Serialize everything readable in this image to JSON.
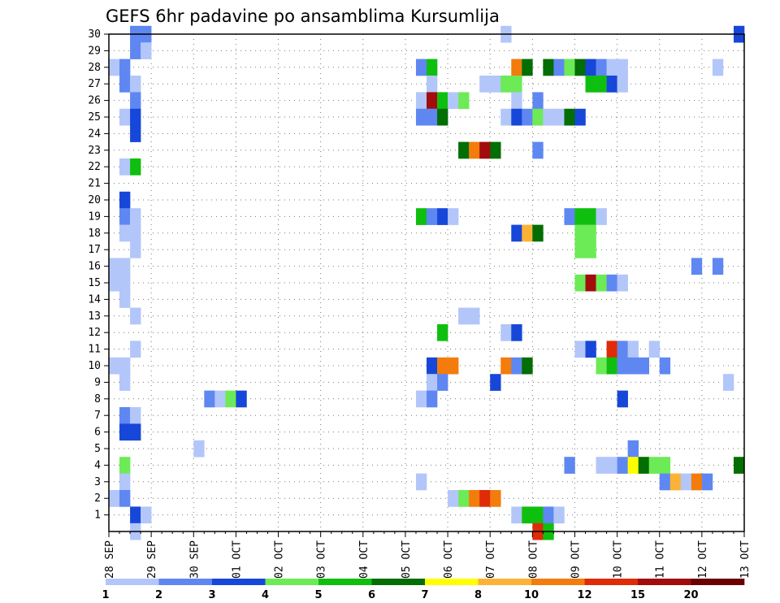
{
  "chart_data": {
    "type": "heatmap",
    "title": "GEFS 6hr padavine po ansamblima Kursumlija",
    "xlabel": "",
    "ylabel": "",
    "x_start": "28 SEP",
    "x_ticks": [
      "28 SEP",
      "29 SEP",
      "30 SEP",
      "01 OCT",
      "02 OCT",
      "03 OCT",
      "04 OCT",
      "05 OCT",
      "06 OCT",
      "07 OCT",
      "08 OCT",
      "09 OCT",
      "10 OCT",
      "11 OCT",
      "12 OCT",
      "13 OCT"
    ],
    "y_ticks": [
      "1",
      "2",
      "3",
      "4",
      "5",
      "6",
      "7",
      "8",
      "9",
      "10",
      "11",
      "12",
      "13",
      "14",
      "15",
      "16",
      "17",
      "18",
      "19",
      "20",
      "21",
      "22",
      "23",
      "24",
      "25",
      "26",
      "27",
      "28",
      "29",
      "30"
    ],
    "ylim": [
      0,
      30
    ],
    "grid": true,
    "colorbar": {
      "labels": [
        "1",
        "2",
        "3",
        "4",
        "5",
        "6",
        "7",
        "8",
        "10",
        "12",
        "15",
        "20"
      ],
      "colors": [
        "#b3c6fa",
        "#5f87f2",
        "#1747d9",
        "#6ceb56",
        "#0fbf0f",
        "#036e03",
        "#ffff00",
        "#fcb237",
        "#f37c0c",
        "#df2b08",
        "#a30c0c",
        "#6b0000"
      ]
    },
    "cells": [
      {
        "day": 0.5,
        "member": 30,
        "value": 2
      },
      {
        "day": 0.75,
        "member": 30,
        "value": 2
      },
      {
        "day": 9.25,
        "member": 30,
        "value": 1
      },
      {
        "day": 14.75,
        "member": 30,
        "value": 3
      },
      {
        "day": 0.5,
        "member": 29,
        "value": 2
      },
      {
        "day": 0.75,
        "member": 29,
        "value": 1
      },
      {
        "day": 0.0,
        "member": 28,
        "value": 1
      },
      {
        "day": 0.25,
        "member": 28,
        "value": 2
      },
      {
        "day": 7.25,
        "member": 28,
        "value": 2
      },
      {
        "day": 7.5,
        "member": 28,
        "value": 5
      },
      {
        "day": 9.5,
        "member": 28,
        "value": 10
      },
      {
        "day": 9.75,
        "member": 28,
        "value": 6
      },
      {
        "day": 10.25,
        "member": 28,
        "value": 6
      },
      {
        "day": 10.5,
        "member": 28,
        "value": 2
      },
      {
        "day": 10.75,
        "member": 28,
        "value": 4
      },
      {
        "day": 11.0,
        "member": 28,
        "value": 6
      },
      {
        "day": 11.25,
        "member": 28,
        "value": 3
      },
      {
        "day": 11.5,
        "member": 28,
        "value": 2
      },
      {
        "day": 11.75,
        "member": 28,
        "value": 1
      },
      {
        "day": 12.0,
        "member": 28,
        "value": 1
      },
      {
        "day": 14.25,
        "member": 28,
        "value": 1
      },
      {
        "day": 0.25,
        "member": 27,
        "value": 2
      },
      {
        "day": 0.5,
        "member": 27,
        "value": 1
      },
      {
        "day": 7.5,
        "member": 27,
        "value": 1
      },
      {
        "day": 8.75,
        "member": 27,
        "value": 1
      },
      {
        "day": 9.0,
        "member": 27,
        "value": 1
      },
      {
        "day": 9.25,
        "member": 27,
        "value": 4
      },
      {
        "day": 9.5,
        "member": 27,
        "value": 4
      },
      {
        "day": 11.25,
        "member": 27,
        "value": 5
      },
      {
        "day": 11.5,
        "member": 27,
        "value": 5
      },
      {
        "day": 11.75,
        "member": 27,
        "value": 3
      },
      {
        "day": 12.0,
        "member": 27,
        "value": 1
      },
      {
        "day": 0.5,
        "member": 26,
        "value": 2
      },
      {
        "day": 7.25,
        "member": 26,
        "value": 1
      },
      {
        "day": 7.5,
        "member": 26,
        "value": 15
      },
      {
        "day": 7.75,
        "member": 26,
        "value": 5
      },
      {
        "day": 8.0,
        "member": 26,
        "value": 1
      },
      {
        "day": 8.25,
        "member": 26,
        "value": 4
      },
      {
        "day": 9.5,
        "member": 26,
        "value": 1
      },
      {
        "day": 10.0,
        "member": 26,
        "value": 2
      },
      {
        "day": 0.25,
        "member": 25,
        "value": 1
      },
      {
        "day": 0.5,
        "member": 25,
        "value": 3
      },
      {
        "day": 7.25,
        "member": 25,
        "value": 2
      },
      {
        "day": 7.5,
        "member": 25,
        "value": 2
      },
      {
        "day": 7.75,
        "member": 25,
        "value": 6
      },
      {
        "day": 9.25,
        "member": 25,
        "value": 1
      },
      {
        "day": 9.5,
        "member": 25,
        "value": 3
      },
      {
        "day": 9.75,
        "member": 25,
        "value": 2
      },
      {
        "day": 10.0,
        "member": 25,
        "value": 4
      },
      {
        "day": 10.25,
        "member": 25,
        "value": 1
      },
      {
        "day": 10.5,
        "member": 25,
        "value": 1
      },
      {
        "day": 10.75,
        "member": 25,
        "value": 6
      },
      {
        "day": 11.0,
        "member": 25,
        "value": 3
      },
      {
        "day": 0.5,
        "member": 24,
        "value": 3
      },
      {
        "day": 8.25,
        "member": 23,
        "value": 6
      },
      {
        "day": 8.5,
        "member": 23,
        "value": 10
      },
      {
        "day": 8.75,
        "member": 23,
        "value": 15
      },
      {
        "day": 9.0,
        "member": 23,
        "value": 6
      },
      {
        "day": 10.0,
        "member": 23,
        "value": 2
      },
      {
        "day": 0.25,
        "member": 22,
        "value": 1
      },
      {
        "day": 0.5,
        "member": 22,
        "value": 5
      },
      {
        "day": 0.25,
        "member": 20,
        "value": 3
      },
      {
        "day": 0.25,
        "member": 19,
        "value": 2
      },
      {
        "day": 0.5,
        "member": 19,
        "value": 1
      },
      {
        "day": 7.25,
        "member": 19,
        "value": 5
      },
      {
        "day": 7.5,
        "member": 19,
        "value": 2
      },
      {
        "day": 7.75,
        "member": 19,
        "value": 3
      },
      {
        "day": 8.0,
        "member": 19,
        "value": 1
      },
      {
        "day": 10.75,
        "member": 19,
        "value": 2
      },
      {
        "day": 11.0,
        "member": 19,
        "value": 5
      },
      {
        "day": 11.25,
        "member": 19,
        "value": 5
      },
      {
        "day": 11.5,
        "member": 19,
        "value": 1
      },
      {
        "day": 0.25,
        "member": 18,
        "value": 1
      },
      {
        "day": 0.5,
        "member": 18,
        "value": 1
      },
      {
        "day": 9.5,
        "member": 18,
        "value": 3
      },
      {
        "day": 9.75,
        "member": 18,
        "value": 8
      },
      {
        "day": 10.0,
        "member": 18,
        "value": 6
      },
      {
        "day": 11.0,
        "member": 18,
        "value": 4
      },
      {
        "day": 11.25,
        "member": 18,
        "value": 4
      },
      {
        "day": 0.5,
        "member": 17,
        "value": 1
      },
      {
        "day": 11.0,
        "member": 17,
        "value": 4
      },
      {
        "day": 11.25,
        "member": 17,
        "value": 4
      },
      {
        "day": 0.0,
        "member": 16,
        "value": 1
      },
      {
        "day": 0.25,
        "member": 16,
        "value": 1
      },
      {
        "day": 13.75,
        "member": 16,
        "value": 2
      },
      {
        "day": 14.25,
        "member": 16,
        "value": 2
      },
      {
        "day": 0.0,
        "member": 15,
        "value": 1
      },
      {
        "day": 0.25,
        "member": 15,
        "value": 1
      },
      {
        "day": 11.0,
        "member": 15,
        "value": 4
      },
      {
        "day": 11.25,
        "member": 15,
        "value": 15
      },
      {
        "day": 11.5,
        "member": 15,
        "value": 4
      },
      {
        "day": 11.75,
        "member": 15,
        "value": 2
      },
      {
        "day": 12.0,
        "member": 15,
        "value": 1
      },
      {
        "day": 0.25,
        "member": 14,
        "value": 1
      },
      {
        "day": 0.5,
        "member": 13,
        "value": 1
      },
      {
        "day": 8.25,
        "member": 13,
        "value": 1
      },
      {
        "day": 8.5,
        "member": 13,
        "value": 1
      },
      {
        "day": 7.75,
        "member": 12,
        "value": 5
      },
      {
        "day": 9.25,
        "member": 12,
        "value": 1
      },
      {
        "day": 9.5,
        "member": 12,
        "value": 3
      },
      {
        "day": 0.5,
        "member": 11,
        "value": 1
      },
      {
        "day": 11.0,
        "member": 11,
        "value": 1
      },
      {
        "day": 11.25,
        "member": 11,
        "value": 3
      },
      {
        "day": 11.75,
        "member": 11,
        "value": 12
      },
      {
        "day": 12.0,
        "member": 11,
        "value": 2
      },
      {
        "day": 12.25,
        "member": 11,
        "value": 1
      },
      {
        "day": 12.75,
        "member": 11,
        "value": 1
      },
      {
        "day": 0.0,
        "member": 10,
        "value": 1
      },
      {
        "day": 0.25,
        "member": 10,
        "value": 1
      },
      {
        "day": 7.5,
        "member": 10,
        "value": 3
      },
      {
        "day": 7.75,
        "member": 10,
        "value": 10
      },
      {
        "day": 8.0,
        "member": 10,
        "value": 10
      },
      {
        "day": 9.25,
        "member": 10,
        "value": 10
      },
      {
        "day": 9.5,
        "member": 10,
        "value": 2
      },
      {
        "day": 9.75,
        "member": 10,
        "value": 6
      },
      {
        "day": 11.5,
        "member": 10,
        "value": 4
      },
      {
        "day": 11.75,
        "member": 10,
        "value": 5
      },
      {
        "day": 12.0,
        "member": 10,
        "value": 2
      },
      {
        "day": 12.25,
        "member": 10,
        "value": 2
      },
      {
        "day": 12.5,
        "member": 10,
        "value": 2
      },
      {
        "day": 13.0,
        "member": 10,
        "value": 2
      },
      {
        "day": 0.25,
        "member": 9,
        "value": 1
      },
      {
        "day": 7.5,
        "member": 9,
        "value": 1
      },
      {
        "day": 7.75,
        "member": 9,
        "value": 2
      },
      {
        "day": 9.0,
        "member": 9,
        "value": 3
      },
      {
        "day": 14.5,
        "member": 9,
        "value": 1
      },
      {
        "day": 2.25,
        "member": 8,
        "value": 2
      },
      {
        "day": 2.5,
        "member": 8,
        "value": 1
      },
      {
        "day": 2.75,
        "member": 8,
        "value": 4
      },
      {
        "day": 3.0,
        "member": 8,
        "value": 3
      },
      {
        "day": 7.25,
        "member": 8,
        "value": 1
      },
      {
        "day": 7.5,
        "member": 8,
        "value": 2
      },
      {
        "day": 12.0,
        "member": 8,
        "value": 3
      },
      {
        "day": 0.25,
        "member": 7,
        "value": 2
      },
      {
        "day": 0.5,
        "member": 7,
        "value": 1
      },
      {
        "day": 0.25,
        "member": 6,
        "value": 3
      },
      {
        "day": 0.5,
        "member": 6,
        "value": 3
      },
      {
        "day": 2.0,
        "member": 5,
        "value": 1
      },
      {
        "day": 12.25,
        "member": 5,
        "value": 2
      },
      {
        "day": 0.25,
        "member": 4,
        "value": 4
      },
      {
        "day": 10.75,
        "member": 4,
        "value": 2
      },
      {
        "day": 11.5,
        "member": 4,
        "value": 1
      },
      {
        "day": 11.75,
        "member": 4,
        "value": 1
      },
      {
        "day": 12.0,
        "member": 4,
        "value": 2
      },
      {
        "day": 12.25,
        "member": 4,
        "value": 7
      },
      {
        "day": 12.5,
        "member": 4,
        "value": 6
      },
      {
        "day": 12.75,
        "member": 4,
        "value": 4
      },
      {
        "day": 13.0,
        "member": 4,
        "value": 4
      },
      {
        "day": 14.75,
        "member": 4,
        "value": 6
      },
      {
        "day": 0.25,
        "member": 3,
        "value": 1
      },
      {
        "day": 7.25,
        "member": 3,
        "value": 1
      },
      {
        "day": 13.0,
        "member": 3,
        "value": 2
      },
      {
        "day": 13.25,
        "member": 3,
        "value": 8
      },
      {
        "day": 13.5,
        "member": 3,
        "value": 1
      },
      {
        "day": 13.75,
        "member": 3,
        "value": 10
      },
      {
        "day": 14.0,
        "member": 3,
        "value": 2
      },
      {
        "day": 0.0,
        "member": 2,
        "value": 1
      },
      {
        "day": 0.25,
        "member": 2,
        "value": 2
      },
      {
        "day": 8.0,
        "member": 2,
        "value": 1
      },
      {
        "day": 8.25,
        "member": 2,
        "value": 4
      },
      {
        "day": 8.5,
        "member": 2,
        "value": 10
      },
      {
        "day": 8.75,
        "member": 2,
        "value": 12
      },
      {
        "day": 9.0,
        "member": 2,
        "value": 10
      },
      {
        "day": 0.5,
        "member": 1,
        "value": 3
      },
      {
        "day": 0.75,
        "member": 1,
        "value": 1
      },
      {
        "day": 9.5,
        "member": 1,
        "value": 1
      },
      {
        "day": 9.75,
        "member": 1,
        "value": 5
      },
      {
        "day": 10.0,
        "member": 1,
        "value": 5
      },
      {
        "day": 10.25,
        "member": 1,
        "value": 2
      },
      {
        "day": 10.5,
        "member": 1,
        "value": 1
      },
      {
        "day": 0.5,
        "member": 0,
        "value": 1
      },
      {
        "day": 10.0,
        "member": 0,
        "value": 12
      },
      {
        "day": 10.25,
        "member": 0,
        "value": 5
      }
    ]
  }
}
